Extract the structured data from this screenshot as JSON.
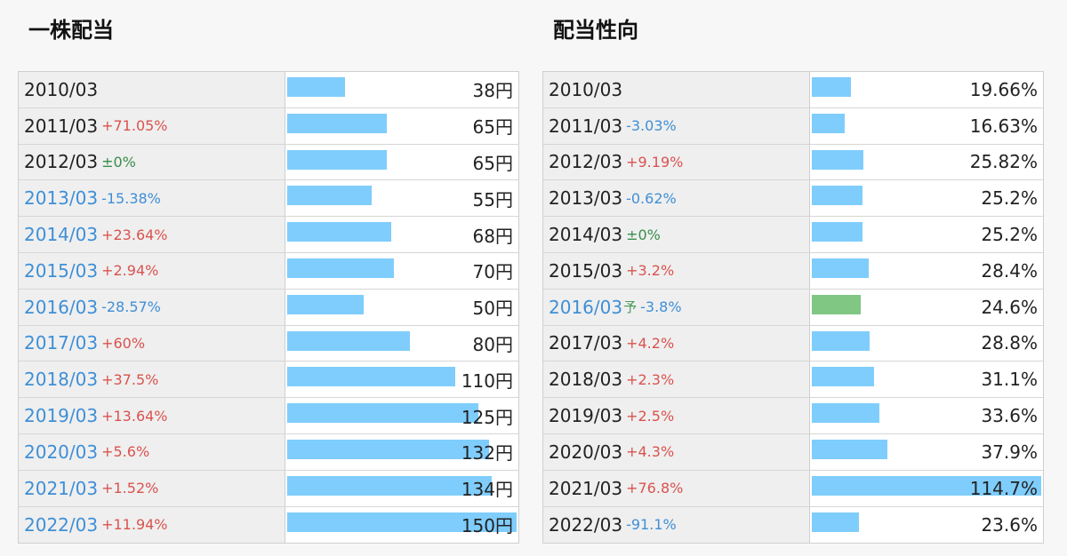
{
  "left": {
    "title": "一株配当",
    "colors": {
      "bar": "#7fcdfc",
      "positive": "#d9534f",
      "negative": "#3f8fd6",
      "zero": "#3a8d4c",
      "link": "#3f8fd6"
    },
    "rows": [
      {
        "year": "2010/03",
        "change": "",
        "change_type": "none",
        "value": "38円",
        "amount": 38,
        "linked": false,
        "forecast": false
      },
      {
        "year": "2011/03",
        "change": "+71.05%",
        "change_type": "pos",
        "value": "65円",
        "amount": 65,
        "linked": false,
        "forecast": false
      },
      {
        "year": "2012/03",
        "change": "±0%",
        "change_type": "zero",
        "value": "65円",
        "amount": 65,
        "linked": false,
        "forecast": false
      },
      {
        "year": "2013/03",
        "change": "-15.38%",
        "change_type": "neg",
        "value": "55円",
        "amount": 55,
        "linked": true,
        "forecast": false
      },
      {
        "year": "2014/03",
        "change": "+23.64%",
        "change_type": "pos",
        "value": "68円",
        "amount": 68,
        "linked": true,
        "forecast": false
      },
      {
        "year": "2015/03",
        "change": "+2.94%",
        "change_type": "pos",
        "value": "70円",
        "amount": 70,
        "linked": true,
        "forecast": false
      },
      {
        "year": "2016/03",
        "change": "-28.57%",
        "change_type": "neg",
        "value": "50円",
        "amount": 50,
        "linked": true,
        "forecast": false
      },
      {
        "year": "2017/03",
        "change": "+60%",
        "change_type": "pos",
        "value": "80円",
        "amount": 80,
        "linked": true,
        "forecast": false
      },
      {
        "year": "2018/03",
        "change": "+37.5%",
        "change_type": "pos",
        "value": "110円",
        "amount": 110,
        "linked": true,
        "forecast": false
      },
      {
        "year": "2019/03",
        "change": "+13.64%",
        "change_type": "pos",
        "value": "125円",
        "amount": 125,
        "linked": true,
        "forecast": false
      },
      {
        "year": "2020/03",
        "change": "+5.6%",
        "change_type": "pos",
        "value": "132円",
        "amount": 132,
        "linked": true,
        "forecast": false
      },
      {
        "year": "2021/03",
        "change": "+1.52%",
        "change_type": "pos",
        "value": "134円",
        "amount": 134,
        "linked": true,
        "forecast": false
      },
      {
        "year": "2022/03",
        "change": "+11.94%",
        "change_type": "pos",
        "value": "150円",
        "amount": 150,
        "linked": true,
        "forecast": false
      }
    ]
  },
  "right": {
    "title": "配当性向",
    "colors": {
      "bar": "#7fcdfc",
      "forecast_bar": "#80c784",
      "positive": "#d9534f",
      "negative": "#3f8fd6",
      "zero": "#3a8d4c",
      "link": "#3f8fd6"
    },
    "rows": [
      {
        "year": "2010/03",
        "change": "",
        "change_type": "none",
        "value": "19.66%",
        "amount": 19.66,
        "linked": false,
        "forecast": false
      },
      {
        "year": "2011/03",
        "change": "-3.03%",
        "change_type": "neg",
        "value": "16.63%",
        "amount": 16.63,
        "linked": false,
        "forecast": false
      },
      {
        "year": "2012/03",
        "change": "+9.19%",
        "change_type": "pos",
        "value": "25.82%",
        "amount": 25.82,
        "linked": false,
        "forecast": false
      },
      {
        "year": "2013/03",
        "change": "-0.62%",
        "change_type": "neg",
        "value": "25.2%",
        "amount": 25.2,
        "linked": false,
        "forecast": false
      },
      {
        "year": "2014/03",
        "change": "±0%",
        "change_type": "zero",
        "value": "25.2%",
        "amount": 25.2,
        "linked": false,
        "forecast": false
      },
      {
        "year": "2015/03",
        "change": "+3.2%",
        "change_type": "pos",
        "value": "28.4%",
        "amount": 28.4,
        "linked": false,
        "forecast": false
      },
      {
        "year": "2016/03",
        "forecast_mark": "予",
        "change": "-3.8%",
        "change_type": "neg",
        "value": "24.6%",
        "amount": 24.6,
        "linked": true,
        "forecast": true
      },
      {
        "year": "2017/03",
        "change": "+4.2%",
        "change_type": "pos",
        "value": "28.8%",
        "amount": 28.8,
        "linked": false,
        "forecast": false
      },
      {
        "year": "2018/03",
        "change": "+2.3%",
        "change_type": "pos",
        "value": "31.1%",
        "amount": 31.1,
        "linked": false,
        "forecast": false
      },
      {
        "year": "2019/03",
        "change": "+2.5%",
        "change_type": "pos",
        "value": "33.6%",
        "amount": 33.6,
        "linked": false,
        "forecast": false
      },
      {
        "year": "2020/03",
        "change": "+4.3%",
        "change_type": "pos",
        "value": "37.9%",
        "amount": 37.9,
        "linked": false,
        "forecast": false
      },
      {
        "year": "2021/03",
        "change": "+76.8%",
        "change_type": "pos",
        "value": "114.7%",
        "amount": 114.7,
        "linked": false,
        "forecast": false
      },
      {
        "year": "2022/03",
        "change": "-91.1%",
        "change_type": "neg",
        "value": "23.6%",
        "amount": 23.6,
        "linked": false,
        "forecast": false
      }
    ]
  }
}
